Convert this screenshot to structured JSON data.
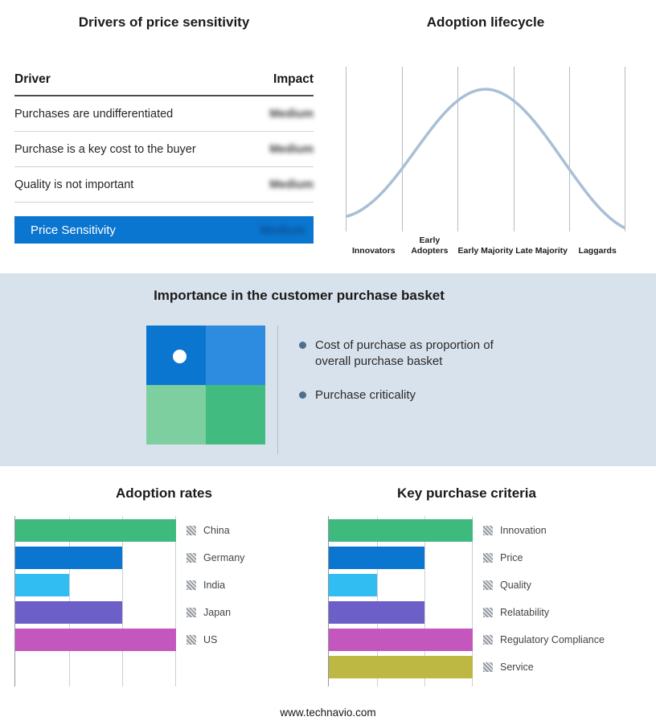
{
  "page": {
    "footer": "www.technavio.com"
  },
  "colors": {
    "accent_blue": "#0b76d0",
    "band_bg": "#d8e2ec",
    "curve": "#a9bfd6",
    "green": "#3eba7e",
    "cyan": "#31bdf2",
    "purple": "#6c5fc7",
    "magenta": "#c457bd",
    "olive": "#bdb743"
  },
  "drivers": {
    "title": "Drivers of price sensitivity",
    "col_driver": "Driver",
    "col_impact": "Impact",
    "rows": [
      {
        "driver": "Purchases are undifferentiated",
        "impact": "Medium"
      },
      {
        "driver": "Purchase is a key cost to the buyer",
        "impact": "Medium"
      },
      {
        "driver": "Quality is not important",
        "impact": "Medium"
      }
    ],
    "highlight": {
      "driver": "Price Sensitivity",
      "impact": "Medium"
    }
  },
  "lifecycle": {
    "title": "Adoption lifecycle",
    "stages": [
      "Innovators",
      "Early Adopters",
      "Early Majority",
      "Late Majority",
      "Laggards"
    ]
  },
  "basket": {
    "title": "Importance in the customer purchase basket",
    "bullets": [
      "Cost of purchase as proportion of overall purchase basket",
      "Purchase criticality"
    ],
    "quadrant_colors": {
      "tl": "#0b76d0",
      "tr": "#2d8be0",
      "bl": "#7ecf9f",
      "br": "#41bb80"
    }
  },
  "adoption": {
    "title": "Adoption rates"
  },
  "criteria": {
    "title": "Key purchase criteria"
  },
  "chart_data": [
    {
      "type": "line",
      "title": "Adoption lifecycle",
      "categories": [
        "Innovators",
        "Early Adopters",
        "Early Majority",
        "Late Majority",
        "Laggards"
      ],
      "description": "Bell-shaped adoption curve peaking over Early Majority; axes unlabeled",
      "grid": "vertical gridlines only",
      "legend_position": "none"
    },
    {
      "type": "bar",
      "title": "Adoption rates",
      "orientation": "horizontal",
      "categories": [
        "China",
        "Germany",
        "India",
        "Japan",
        "US"
      ],
      "values": [
        3,
        2,
        1,
        2,
        3
      ],
      "xlim": [
        0,
        3
      ],
      "colors": [
        "#3eba7e",
        "#0b76d0",
        "#31bdf2",
        "#6c5fc7",
        "#c457bd"
      ],
      "note": "relative units read from unlabeled gridlines",
      "legend_position": "right"
    },
    {
      "type": "bar",
      "title": "Key purchase criteria",
      "orientation": "horizontal",
      "categories": [
        "Innovation",
        "Price",
        "Quality",
        "Relatability",
        "Regulatory Compliance",
        "Service"
      ],
      "values": [
        3,
        2,
        1,
        2,
        3,
        3
      ],
      "xlim": [
        0,
        3
      ],
      "colors": [
        "#3eba7e",
        "#0b76d0",
        "#31bdf2",
        "#6c5fc7",
        "#c457bd",
        "#bdb743"
      ],
      "note": "relative units read from unlabeled gridlines",
      "legend_position": "right"
    },
    {
      "type": "table",
      "title": "Drivers of price sensitivity",
      "columns": [
        "Driver",
        "Impact"
      ],
      "rows": [
        [
          "Purchases are undifferentiated",
          "Medium"
        ],
        [
          "Purchase is a key cost to the buyer",
          "Medium"
        ],
        [
          "Quality is not important",
          "Medium"
        ],
        [
          "Price Sensitivity",
          "Medium"
        ]
      ],
      "note": "Impact values are blurred/redacted in the source image"
    }
  ]
}
